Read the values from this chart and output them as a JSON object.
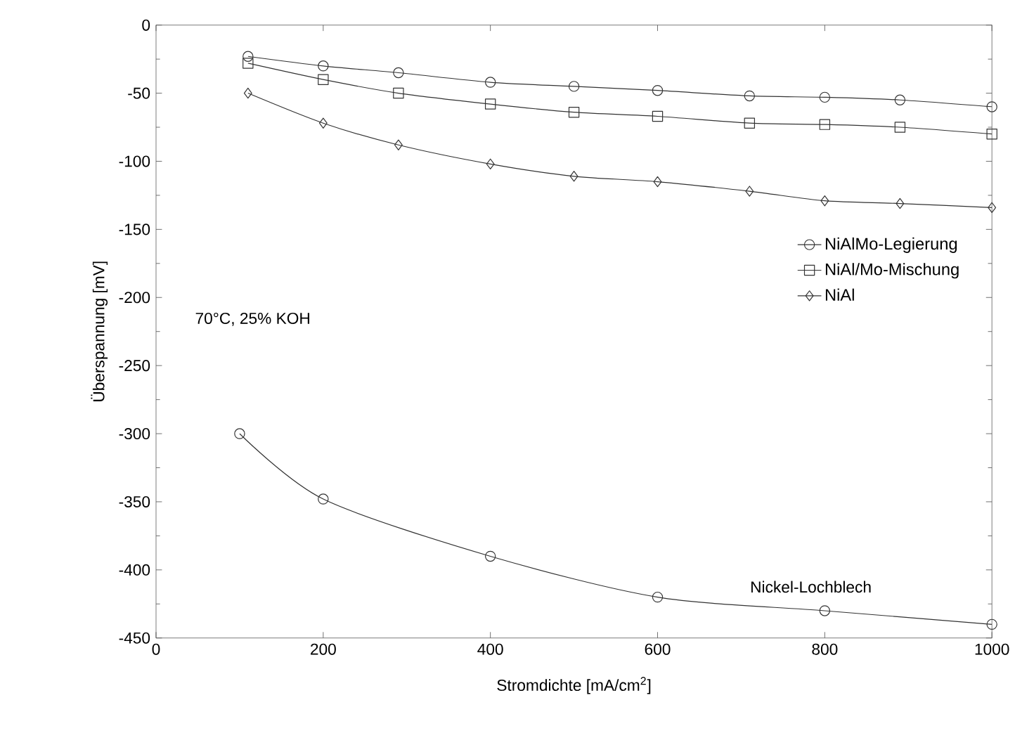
{
  "chart_data": {
    "type": "line",
    "xlabel": "Stromdichte  [mA/cm$^{2}$]",
    "ylabel": "Überspannung  [mV]",
    "xlim": [
      0,
      1000
    ],
    "ylim": [
      -450,
      0
    ],
    "xticks": [
      0,
      200,
      400,
      600,
      800,
      1000
    ],
    "yticks": [
      -450,
      -400,
      -350,
      -300,
      -250,
      -200,
      -150,
      -100,
      -50,
      0
    ],
    "grid": false,
    "legend": "right",
    "annotations": [
      "70°C, 25% KOH"
    ],
    "series": [
      {
        "name": "NiAlMo-Legierung",
        "color": "#333333",
        "marker": "circle",
        "x": [
          110,
          200,
          290,
          400,
          500,
          600,
          710,
          800,
          890,
          1000
        ],
        "values": [
          -23,
          -30,
          -35,
          -42,
          -45,
          -48,
          -52,
          -53,
          -55,
          -60
        ]
      },
      {
        "name": "NiAl/Mo-Mischung",
        "color": "#333333",
        "marker": "square",
        "x": [
          110,
          200,
          290,
          400,
          500,
          600,
          710,
          800,
          890,
          1000
        ],
        "values": [
          -28,
          -40,
          -50,
          -58,
          -64,
          -67,
          -72,
          -73,
          -75,
          -80
        ]
      },
      {
        "name": "NiAl",
        "color": "#333333",
        "marker": "diamond",
        "x": [
          110,
          200,
          290,
          400,
          500,
          600,
          710,
          800,
          890,
          1000
        ],
        "values": [
          -50,
          -72,
          -88,
          -102,
          -111,
          -115,
          -122,
          -129,
          -131,
          -134
        ]
      },
      {
        "name": "Nickel-Lochblech",
        "color": "#333333",
        "marker": "circle",
        "x": [
          100,
          200,
          400,
          600,
          800,
          1000
        ],
        "values": [
          -300,
          -348,
          -390,
          -420,
          -430,
          -440
        ]
      }
    ]
  }
}
